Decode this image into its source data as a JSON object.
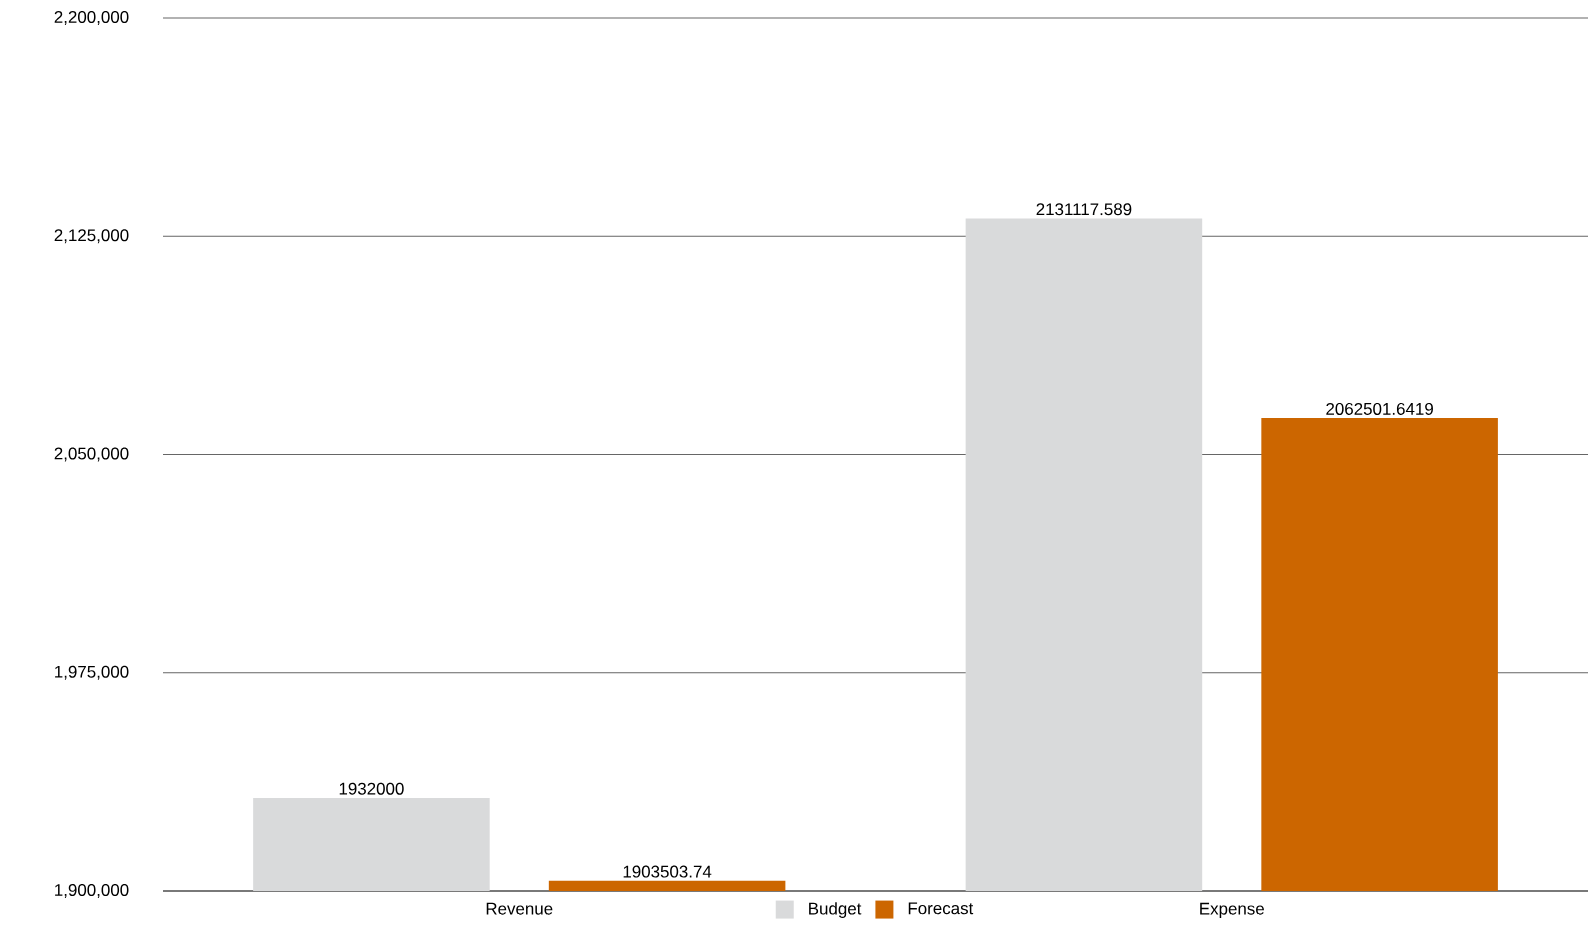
{
  "chart_data": {
    "type": "bar",
    "categories": [
      "Revenue",
      "Expense"
    ],
    "series": [
      {
        "name": "Budget",
        "color": "#d9dadb",
        "values": [
          1932000,
          2131117.589
        ]
      },
      {
        "name": "Forecast",
        "color": "#cc6600",
        "values": [
          1903503.74,
          2062501.6419
        ]
      }
    ],
    "ylim": [
      1900000,
      2200000
    ],
    "yticks": [
      {
        "value": 1900000,
        "label": "1,900,000"
      },
      {
        "value": 1975000,
        "label": "1,975,000"
      },
      {
        "value": 2050000,
        "label": "2,050,000"
      },
      {
        "value": 2125000,
        "label": "2,125,000"
      },
      {
        "value": 2200000,
        "label": "2,200,000"
      }
    ],
    "grid": "y",
    "legend": "bottom",
    "data_labels": true
  }
}
